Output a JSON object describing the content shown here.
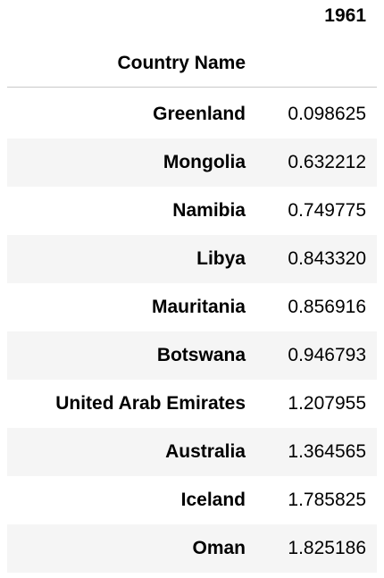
{
  "table": {
    "column_header": "1961",
    "index_name": "Country Name",
    "rows": [
      {
        "name": "Greenland",
        "value": "0.098625"
      },
      {
        "name": "Mongolia",
        "value": "0.632212"
      },
      {
        "name": "Namibia",
        "value": "0.749775"
      },
      {
        "name": "Libya",
        "value": "0.843320"
      },
      {
        "name": "Mauritania",
        "value": "0.856916"
      },
      {
        "name": "Botswana",
        "value": "0.946793"
      },
      {
        "name": "United Arab Emirates",
        "value": "1.207955"
      },
      {
        "name": "Australia",
        "value": "1.364565"
      },
      {
        "name": "Iceland",
        "value": "1.785825"
      },
      {
        "name": "Oman",
        "value": "1.825186"
      }
    ]
  },
  "colors": {
    "text": "#000000",
    "row_stripe": "#f5f5f5",
    "header_rule": "#c9c9c9"
  }
}
